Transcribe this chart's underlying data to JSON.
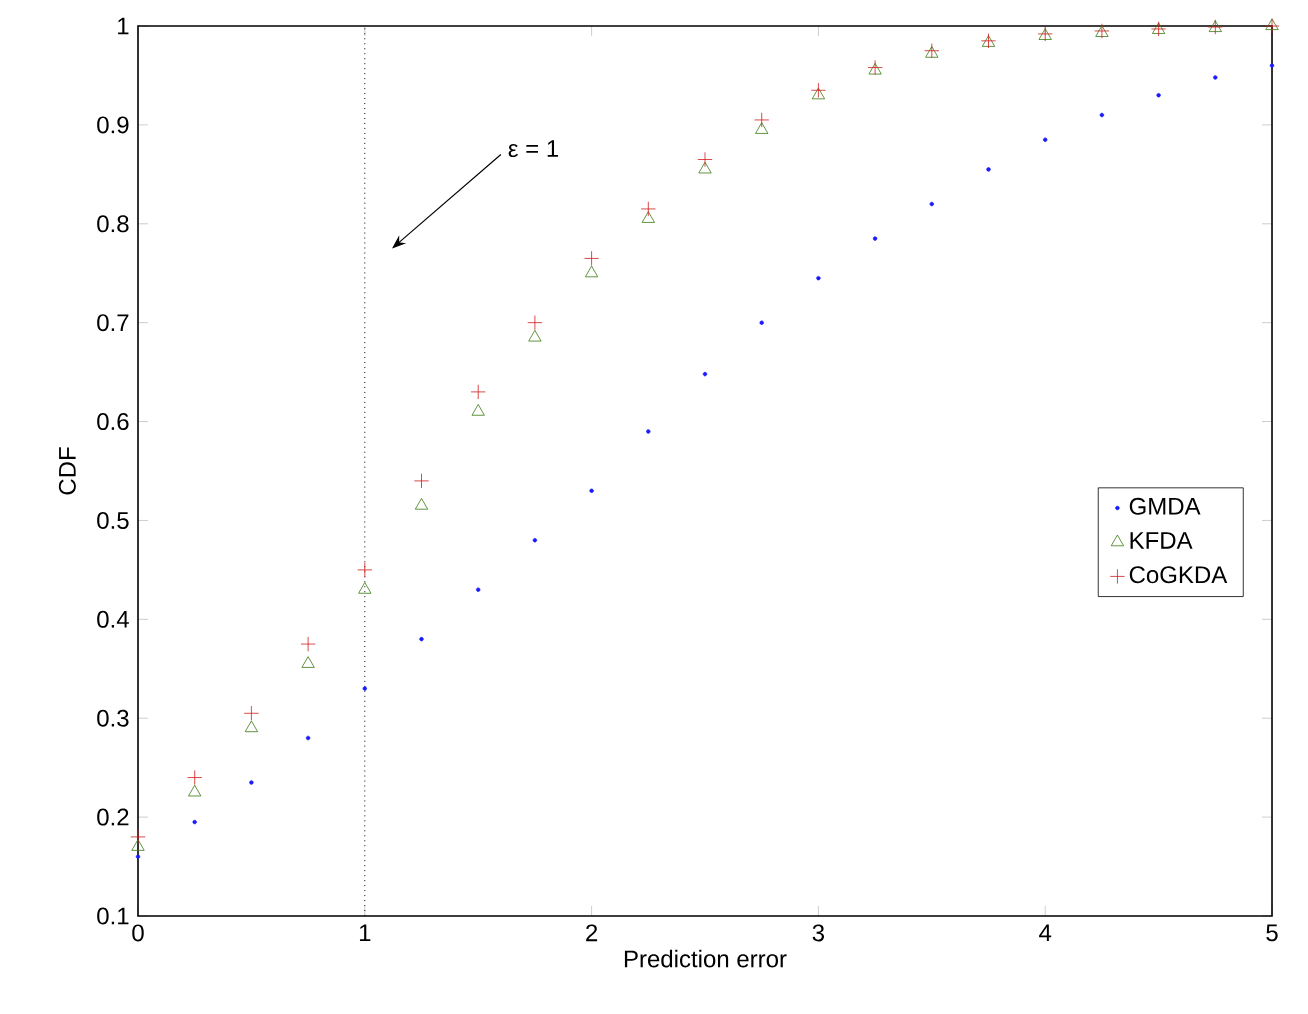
{
  "chart_data": {
    "type": "scatter",
    "xlabel": "Prediction error",
    "ylabel": "CDF",
    "annotations": [
      "ε = 1"
    ],
    "x": [
      0,
      0.25,
      0.5,
      0.75,
      1,
      1.25,
      1.5,
      1.75,
      2,
      2.25,
      2.5,
      2.75,
      3,
      3.25,
      3.5,
      3.75,
      4,
      4.25,
      4.5,
      4.75,
      5
    ],
    "series": [
      {
        "name": "GMDA",
        "color": "#1a1aff",
        "marker": "circle",
        "values": [
          0.16,
          0.195,
          0.235,
          0.28,
          0.33,
          0.38,
          0.43,
          0.48,
          0.53,
          0.59,
          0.648,
          0.7,
          0.745,
          0.785,
          0.82,
          0.855,
          0.885,
          0.91,
          0.93,
          0.948,
          0.96
        ]
      },
      {
        "name": "KFDA",
        "color": "#3a7a12",
        "marker": "triangle",
        "values": [
          0.17,
          0.225,
          0.29,
          0.355,
          0.43,
          0.515,
          0.61,
          0.685,
          0.75,
          0.805,
          0.855,
          0.895,
          0.93,
          0.955,
          0.972,
          0.983,
          0.99,
          0.993,
          0.996,
          0.998,
          1
        ]
      },
      {
        "name": "CoGKDA",
        "color": "#d01c1c",
        "marker": "cross",
        "values": [
          0.18,
          0.24,
          0.305,
          0.375,
          0.45,
          0.54,
          0.63,
          0.7,
          0.765,
          0.815,
          0.865,
          0.905,
          0.935,
          0.958,
          0.975,
          0.985,
          0.992,
          0.995,
          0.997,
          0.999,
          1
        ]
      }
    ],
    "xlim": [
      0,
      5
    ],
    "ylim": [
      0.1,
      1
    ],
    "xticks": [
      0,
      1,
      2,
      3,
      4,
      5
    ],
    "yticks": [
      0.1,
      0.2,
      0.3,
      0.4,
      0.5,
      0.6,
      0.7,
      0.8,
      0.9,
      1
    ],
    "ref_lines": [
      {
        "axis": "x",
        "value": 1,
        "line_style": "dotted"
      }
    ],
    "legend": "right"
  }
}
